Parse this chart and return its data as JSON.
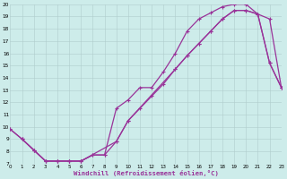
{
  "bg_color": "#cdecea",
  "grid_color": "#b0cccc",
  "line_color": "#993399",
  "xlim": [
    0,
    23
  ],
  "ylim": [
    7,
    20
  ],
  "xticks": [
    0,
    1,
    2,
    3,
    4,
    5,
    6,
    7,
    8,
    9,
    10,
    11,
    12,
    13,
    14,
    15,
    16,
    17,
    18,
    19,
    20,
    21,
    22,
    23
  ],
  "yticks": [
    7,
    8,
    9,
    10,
    11,
    12,
    13,
    14,
    15,
    16,
    17,
    18,
    19,
    20
  ],
  "xlabel": "Windchill (Refroidissement éolien,°C)",
  "line1_x": [
    0,
    1,
    2,
    3,
    4,
    5,
    6,
    7,
    8,
    9,
    10,
    11,
    12,
    13,
    14,
    15,
    16,
    17,
    18,
    19,
    20,
    21,
    22,
    23
  ],
  "line1_y": [
    9.8,
    9.0,
    8.1,
    7.2,
    7.2,
    7.2,
    7.2,
    7.7,
    7.7,
    8.8,
    10.5,
    11.5,
    12.5,
    13.5,
    14.7,
    15.8,
    16.8,
    17.8,
    18.8,
    19.5,
    19.5,
    19.2,
    18.8,
    13.2
  ],
  "line2_x": [
    1,
    2,
    3,
    4,
    5,
    6,
    7,
    8,
    9,
    10,
    11,
    12,
    13,
    14,
    15,
    16,
    17,
    18,
    19,
    20,
    21,
    22,
    23
  ],
  "line2_y": [
    9.0,
    8.1,
    7.2,
    7.2,
    7.2,
    7.2,
    7.7,
    7.7,
    11.5,
    12.2,
    13.2,
    13.2,
    14.5,
    16.0,
    17.8,
    18.8,
    19.3,
    19.8,
    20.0,
    20.0,
    19.2,
    15.2,
    13.2
  ],
  "line3_x": [
    0,
    1,
    2,
    3,
    4,
    5,
    6,
    9,
    10,
    14,
    15,
    16,
    17,
    18,
    19,
    20,
    21,
    22,
    23
  ],
  "line3_y": [
    9.8,
    9.0,
    8.1,
    7.2,
    7.2,
    7.2,
    7.2,
    8.8,
    10.5,
    14.7,
    15.8,
    16.8,
    17.8,
    18.8,
    19.5,
    19.5,
    19.2,
    15.2,
    13.2
  ]
}
